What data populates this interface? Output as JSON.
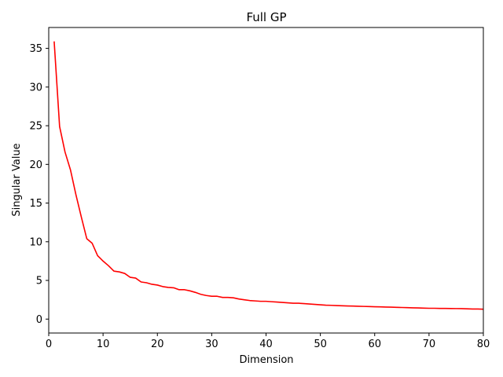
{
  "chart_data": {
    "type": "line",
    "title": "Full GP",
    "xlabel": "Dimension",
    "ylabel": "Singular Value",
    "xlim": [
      0,
      80
    ],
    "ylim": [
      -1.8,
      37.7
    ],
    "xticks": [
      0,
      10,
      20,
      30,
      40,
      50,
      60,
      70,
      80
    ],
    "yticks": [
      0,
      5,
      10,
      15,
      20,
      25,
      30,
      35
    ],
    "grid": false,
    "series": [
      {
        "color": "#ff0000",
        "x": [
          1,
          2,
          3,
          4,
          5,
          6,
          7,
          8,
          9,
          10,
          11,
          12,
          13,
          14,
          15,
          16,
          17,
          18,
          19,
          20,
          21,
          22,
          23,
          24,
          25,
          26,
          27,
          28,
          29,
          30,
          31,
          32,
          33,
          34,
          35,
          36,
          37,
          38,
          39,
          40,
          41,
          42,
          43,
          44,
          45,
          46,
          47,
          48,
          49,
          50,
          51,
          52,
          53,
          54,
          55,
          56,
          57,
          58,
          59,
          60,
          61,
          62,
          63,
          64,
          65,
          66,
          67,
          68,
          69,
          70,
          71,
          72,
          73,
          74,
          75,
          76,
          77,
          78,
          79,
          80
        ],
        "values": [
          35.9,
          24.9,
          21.6,
          19.3,
          16.1,
          13.2,
          10.4,
          9.8,
          8.2,
          7.5,
          6.9,
          6.2,
          6.1,
          5.9,
          5.4,
          5.3,
          4.8,
          4.7,
          4.5,
          4.4,
          4.2,
          4.1,
          4.05,
          3.8,
          3.8,
          3.65,
          3.45,
          3.2,
          3.05,
          2.95,
          2.95,
          2.8,
          2.8,
          2.75,
          2.6,
          2.5,
          2.4,
          2.35,
          2.3,
          2.3,
          2.25,
          2.2,
          2.15,
          2.1,
          2.05,
          2.05,
          2.0,
          1.95,
          1.9,
          1.85,
          1.8,
          1.78,
          1.75,
          1.72,
          1.7,
          1.68,
          1.66,
          1.64,
          1.62,
          1.6,
          1.58,
          1.56,
          1.54,
          1.52,
          1.5,
          1.48,
          1.46,
          1.44,
          1.42,
          1.4,
          1.4,
          1.38,
          1.38,
          1.37,
          1.36,
          1.35,
          1.33,
          1.3,
          1.3,
          1.28
        ]
      }
    ]
  }
}
